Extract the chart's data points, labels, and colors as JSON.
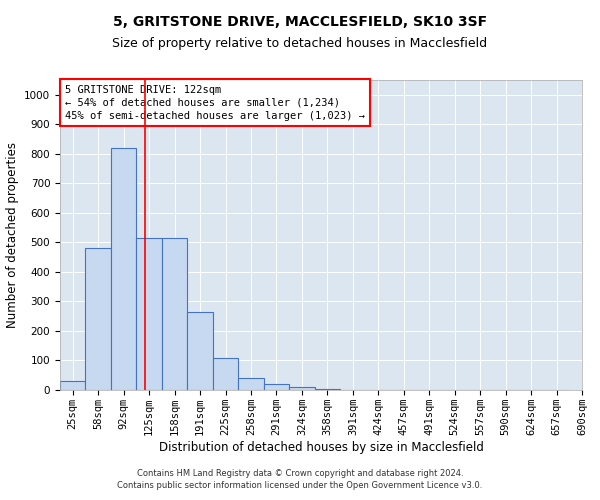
{
  "title1": "5, GRITSTONE DRIVE, MACCLESFIELD, SK10 3SF",
  "title2": "Size of property relative to detached houses in Macclesfield",
  "xlabel": "Distribution of detached houses by size in Macclesfield",
  "ylabel": "Number of detached properties",
  "footer": "Contains HM Land Registry data © Crown copyright and database right 2024.\nContains public sector information licensed under the Open Government Licence v3.0.",
  "bins": [
    "25sqm",
    "58sqm",
    "92sqm",
    "125sqm",
    "158sqm",
    "191sqm",
    "225sqm",
    "258sqm",
    "291sqm",
    "324sqm",
    "358sqm",
    "391sqm",
    "424sqm",
    "457sqm",
    "491sqm",
    "524sqm",
    "557sqm",
    "590sqm",
    "624sqm",
    "657sqm",
    "690sqm"
  ],
  "bar_heights": [
    30,
    480,
    820,
    515,
    515,
    265,
    110,
    40,
    20,
    10,
    5,
    0,
    0,
    0,
    0,
    0,
    0,
    0,
    0,
    0
  ],
  "bar_color": "#c6d9f0",
  "bar_edge_color": "#4472c4",
  "bar_edge_width": 0.8,
  "grid_color": "#ffffff",
  "bg_color": "#dce6f1",
  "red_line_bin_index": 2.82,
  "annotation_text": "5 GRITSTONE DRIVE: 122sqm\n← 54% of detached houses are smaller (1,234)\n45% of semi-detached houses are larger (1,023) →",
  "ylim": [
    0,
    1050
  ],
  "yticks": [
    0,
    100,
    200,
    300,
    400,
    500,
    600,
    700,
    800,
    900,
    1000
  ],
  "title1_fontsize": 10,
  "title2_fontsize": 9,
  "xlabel_fontsize": 8.5,
  "ylabel_fontsize": 8.5,
  "tick_fontsize": 7.5,
  "annotation_fontsize": 7.5,
  "footer_fontsize": 6.0
}
